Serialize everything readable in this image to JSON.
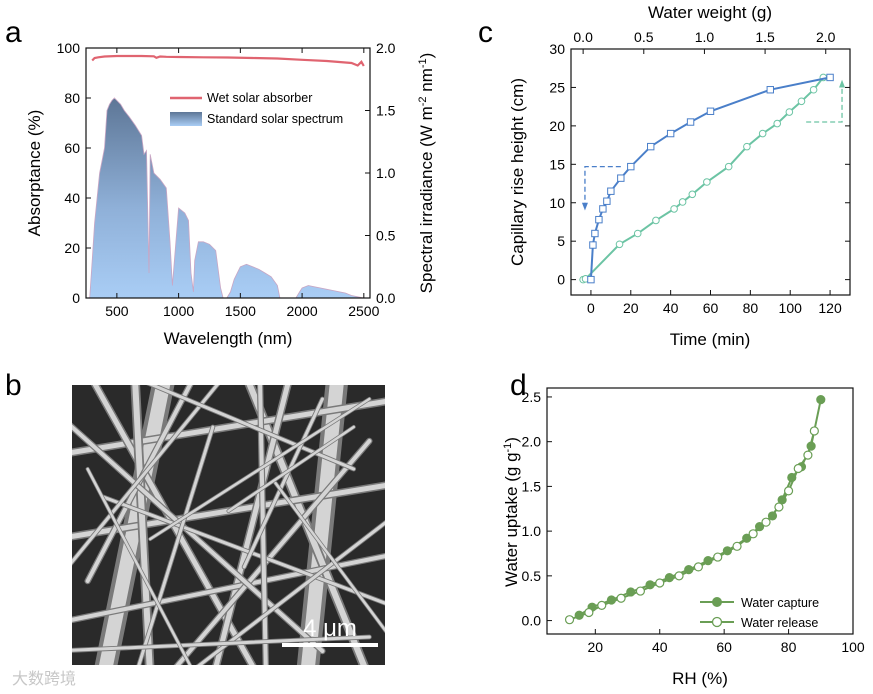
{
  "panel_letters": {
    "a": "a",
    "b": "b",
    "c": "c",
    "d": "d"
  },
  "sem": {
    "scale_bar_label": "4 μm"
  },
  "watermark": {
    "text": "大数跨境"
  },
  "chart_data": [
    {
      "panel": "a",
      "type": "area",
      "xlabel": "Wavelength (nm)",
      "ylabel": "Absorptance (%)",
      "ylabel_right": "Spectral irradiance (W m-2 nm-1)",
      "xlim": [
        250,
        2550
      ],
      "ylim": [
        0,
        100
      ],
      "ylim_right": [
        0,
        2.0
      ],
      "x_ticks": [
        500,
        1000,
        1500,
        2000,
        2500
      ],
      "y_ticks": [
        0,
        20,
        40,
        60,
        80,
        100
      ],
      "y_ticks_right": [
        "0.0",
        "0.5",
        "1.0",
        "1.5",
        "2.0"
      ],
      "legend_position": "top-right",
      "series": [
        {
          "name": "Wet solar absorber",
          "type": "line",
          "color": "#e06470",
          "x": [
            300,
            320,
            350,
            400,
            500,
            600,
            700,
            800,
            820,
            850,
            900,
            1000,
            1200,
            1400,
            1600,
            1800,
            2000,
            2200,
            2400,
            2450,
            2480,
            2500
          ],
          "y": [
            95,
            96,
            96.3,
            96.6,
            96.8,
            96.8,
            96.8,
            96.7,
            96.1,
            96.6,
            96.5,
            96.4,
            96.3,
            96.2,
            96.0,
            95.8,
            95.3,
            94.8,
            94.0,
            93.0,
            94.5,
            92.8
          ]
        },
        {
          "name": "Standard solar spectrum",
          "type": "area",
          "color_top": "#5d7696",
          "color_bottom": "#a9cdf5",
          "x": [
            280,
            300,
            320,
            340,
            360,
            380,
            400,
            420,
            440,
            460,
            480,
            500,
            530,
            560,
            600,
            650,
            700,
            720,
            740,
            760,
            770,
            800,
            850,
            900,
            930,
            950,
            1000,
            1050,
            1080,
            1100,
            1120,
            1130,
            1160,
            1200,
            1250,
            1300,
            1340,
            1360,
            1390,
            1420,
            1450,
            1500,
            1550,
            1600,
            1650,
            1700,
            1750,
            1800,
            1820,
            1850,
            1880,
            1900,
            1950,
            1980,
            2000,
            2050,
            2100,
            2150,
            2200,
            2250,
            2300,
            2350,
            2400,
            2450,
            2500
          ],
          "y": [
            0.0,
            0.3,
            0.6,
            0.8,
            1.0,
            1.1,
            1.2,
            1.5,
            1.55,
            1.58,
            1.6,
            1.58,
            1.55,
            1.5,
            1.45,
            1.38,
            1.3,
            1.15,
            1.18,
            0.2,
            1.15,
            1.0,
            0.95,
            0.88,
            0.45,
            0.1,
            0.72,
            0.68,
            0.62,
            0.2,
            0.05,
            0.3,
            0.45,
            0.45,
            0.43,
            0.38,
            0.08,
            0.0,
            0.0,
            0.05,
            0.15,
            0.25,
            0.27,
            0.25,
            0.23,
            0.2,
            0.17,
            0.1,
            0.0,
            0.0,
            0.0,
            0.0,
            0.0,
            0.05,
            0.08,
            0.1,
            0.09,
            0.08,
            0.07,
            0.06,
            0.05,
            0.04,
            0.02,
            0.01,
            0.0
          ]
        }
      ]
    },
    {
      "panel": "c",
      "type": "scatter",
      "xlabel": "Time (min)",
      "ylabel": "Capillary rise height (cm)",
      "xlabel_top": "Water weight (g)",
      "xlim": [
        -10,
        130
      ],
      "ylim": [
        -2,
        30
      ],
      "xlim_top": [
        -0.1,
        2.2
      ],
      "x_ticks": [
        0,
        20,
        40,
        60,
        80,
        100,
        120
      ],
      "y_ticks": [
        0,
        5,
        10,
        15,
        20,
        25,
        30
      ],
      "x_ticks_top": [
        "0.0",
        "0.5",
        "1.0",
        "1.5",
        "2.0"
      ],
      "x_ticks_top_values": [
        0.0,
        0.5,
        1.0,
        1.5,
        2.0
      ],
      "series": [
        {
          "name": "",
          "axis": "bottom",
          "marker": "square",
          "color": "#4a7fc9",
          "x": [
            0,
            1,
            2,
            4,
            6,
            8,
            10,
            15,
            20,
            30,
            40,
            50,
            60,
            90,
            120
          ],
          "y": [
            0,
            4.5,
            6,
            7.8,
            9.2,
            10.2,
            11.5,
            13.2,
            14.7,
            17.3,
            19.0,
            20.5,
            21.9,
            24.7,
            26.3
          ]
        },
        {
          "name": "",
          "axis": "top",
          "marker": "circle",
          "color": "#6cc4a4",
          "x": [
            0.0,
            0.02,
            0.3,
            0.45,
            0.6,
            0.75,
            0.82,
            0.9,
            1.02,
            1.2,
            1.35,
            1.48,
            1.6,
            1.7,
            1.8,
            1.9,
            1.98
          ],
          "y": [
            0,
            0.1,
            4.6,
            6.0,
            7.7,
            9.2,
            10.1,
            11.1,
            12.7,
            14.7,
            17.3,
            19.0,
            20.3,
            21.8,
            23.2,
            24.7,
            26.3
          ]
        }
      ],
      "annotation_arrows": [
        {
          "color": "#4a7fc9",
          "style": "dashed",
          "direction": "left-down"
        },
        {
          "color": "#6cc4a4",
          "style": "dashed",
          "direction": "right-up"
        }
      ]
    },
    {
      "panel": "d",
      "type": "line",
      "xlabel": "RH (%)",
      "ylabel": "Water uptake (g g-1)",
      "xlim": [
        5,
        100
      ],
      "ylim": [
        -0.15,
        2.6
      ],
      "x_ticks": [
        20,
        40,
        60,
        80,
        100
      ],
      "y_ticks": [
        "0.0",
        "0.5",
        "1.0",
        "1.5",
        "2.0",
        "2.5"
      ],
      "legend_position": "bottom-right",
      "series": [
        {
          "name": "Water capture",
          "marker": "filled-circle",
          "color": "#6a9e55",
          "x": [
            15,
            19,
            25,
            31,
            37,
            43,
            49,
            55,
            61,
            67,
            71,
            75,
            78,
            81,
            84,
            87,
            90
          ],
          "y": [
            0.06,
            0.15,
            0.23,
            0.32,
            0.4,
            0.48,
            0.57,
            0.67,
            0.78,
            0.92,
            1.05,
            1.17,
            1.35,
            1.6,
            1.72,
            1.95,
            2.47
          ]
        },
        {
          "name": "Water release",
          "marker": "open-circle",
          "color": "#6a9e55",
          "x": [
            12,
            18,
            22,
            28,
            34,
            40,
            46,
            52,
            58,
            64,
            69,
            73,
            77,
            80,
            83,
            86,
            88
          ],
          "y": [
            0.01,
            0.09,
            0.17,
            0.25,
            0.33,
            0.42,
            0.5,
            0.6,
            0.71,
            0.83,
            0.97,
            1.1,
            1.27,
            1.45,
            1.7,
            1.85,
            2.12
          ]
        }
      ]
    }
  ]
}
